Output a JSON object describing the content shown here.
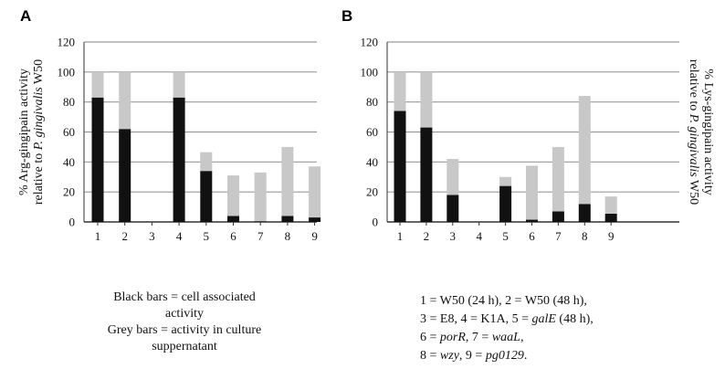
{
  "chart_data": [
    {
      "type": "bar",
      "stacked": true,
      "panel": "A",
      "ylabel_parts": [
        "% Arg-gingipain activity",
        "relative to ",
        "P. gingivalis",
        " W50"
      ],
      "categories": [
        "1",
        "2",
        "3",
        "4",
        "5",
        "6",
        "7",
        "8",
        "9"
      ],
      "ylim": [
        0,
        120
      ],
      "yticks": [
        "0",
        "20",
        "40",
        "60",
        "80",
        "100",
        "120"
      ],
      "grid": true,
      "series": [
        {
          "color": "#111111",
          "values": [
            83,
            62,
            0,
            83,
            34,
            4,
            0.5,
            4,
            3
          ]
        },
        {
          "color": "#c8c8c8",
          "values": [
            17,
            38,
            0,
            17,
            12.5,
            27,
            32.5,
            46,
            34
          ]
        }
      ]
    },
    {
      "type": "bar",
      "stacked": true,
      "panel": "B",
      "ylabel_parts": [
        "% Lys-gingipain activity",
        "relative to ",
        "P. gingivalis",
        " W50"
      ],
      "categories": [
        "1",
        "2",
        "3",
        "4",
        "5",
        "6",
        "7",
        "8",
        "9"
      ],
      "ylim": [
        0,
        120
      ],
      "yticks": [
        "0",
        "20",
        "40",
        "60",
        "80",
        "100",
        "120"
      ],
      "grid": true,
      "series": [
        {
          "color": "#111111",
          "values": [
            74,
            63,
            18,
            0,
            24,
            1.5,
            7,
            12,
            5.5
          ]
        },
        {
          "color": "#c8c8c8",
          "values": [
            26,
            37,
            24,
            0,
            6,
            36,
            43,
            72,
            11.5
          ]
        }
      ]
    }
  ],
  "legend_a": {
    "line1": "Black bars = cell associated",
    "line2": "activity",
    "line3": "Grey bars = activity in culture",
    "line4": "suppernatant"
  },
  "legend_b": {
    "l1": "1 = W50 (24 h), 2 = W50 (48 h),",
    "l2a": "3 = E8, 4 = K1A, 5 = ",
    "l2b": "galE",
    "l2c": " (48 h),",
    "l3a": "6 = ",
    "l3b": "porR",
    "l3c": ", 7 = ",
    "l3d": "waaL",
    "l3e": ",",
    "l4a": "8 = ",
    "l4b": "wzy",
    "l4c": ", 9 = ",
    "l4d": "pg0129",
    "l4e": "."
  }
}
